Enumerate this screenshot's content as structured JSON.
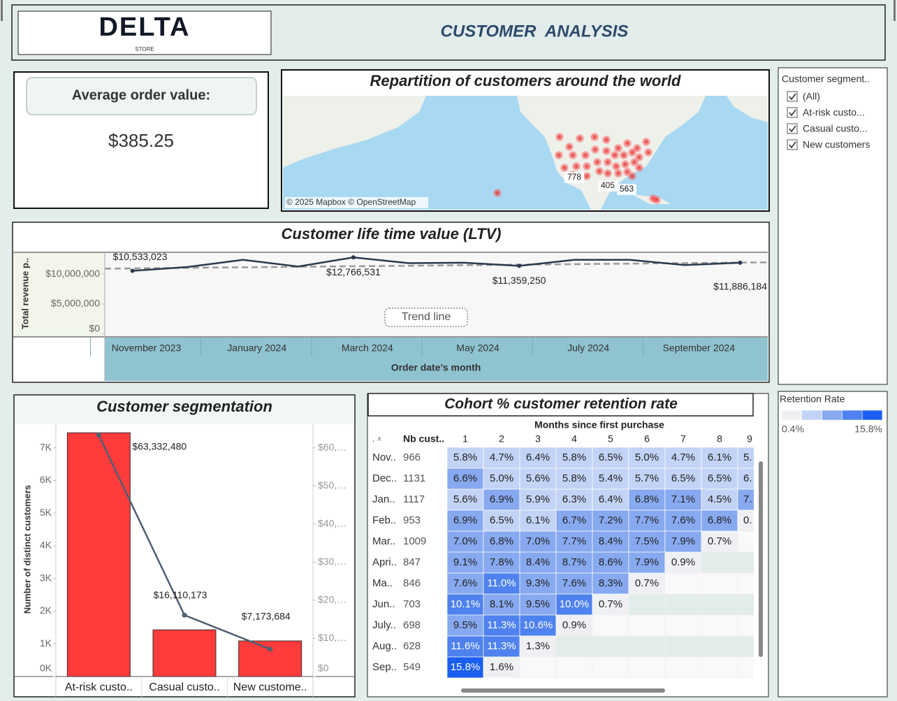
{
  "header": {
    "logo": "DELTA",
    "logo_sub": "STORE",
    "title": "CUSTOMER  ANALYSIS"
  },
  "kpi": {
    "label": "Average order value:",
    "value": "$385.25"
  },
  "map": {
    "title": "Repartition of customers around the world",
    "labels": [
      "778",
      "405",
      "563"
    ],
    "attribution": "© 2025 Mapbox © OpenStreetMap"
  },
  "chart_data": [
    {
      "type": "line",
      "title": "Customer life time value (LTV)",
      "y_label": "Total revenue p..",
      "x_label": "Order date’s month",
      "categories": [
        "November 2023",
        null,
        "January 2024",
        null,
        "March 2024",
        null,
        "May 2024",
        null,
        "July 2024",
        null,
        "September 2024",
        null
      ],
      "values": [
        10533023,
        11170000,
        12370000,
        11250000,
        12766531,
        11810000,
        11890000,
        11359250,
        12370000,
        12370000,
        11490000,
        11886184
      ],
      "value_labels": [
        "$10,533,023",
        null,
        null,
        null,
        "$12,766,531",
        null,
        null,
        "$11,359,250",
        null,
        null,
        null,
        "$11,886,184"
      ],
      "color": "#2b3a4f",
      "ylim": [
        0,
        13500000
      ],
      "yticks": [
        {
          "value": 0,
          "label": "$0"
        },
        {
          "value": 5000000,
          "label": "$5,000,000"
        },
        {
          "value": 10000000,
          "label": "$10,000,000"
        }
      ],
      "trend_line": {
        "label": "Trend line",
        "values": [
          10900000,
          11950000
        ],
        "color": "#9a9a9a"
      }
    },
    {
      "type": "bar_line",
      "title": "Customer segmentation",
      "y_label": "Number of distinct customers",
      "categories": [
        "At-risk custo..",
        "Casual custo..",
        "New custome.."
      ],
      "series": [
        {
          "type": "bar",
          "color": "#ff3b3b",
          "values": [
            7460,
            1430,
            1090
          ]
        },
        {
          "type": "line",
          "axis": "y2",
          "color": "#4f5f73",
          "values": [
            63332480,
            16110173,
            7173684
          ],
          "value_labels": [
            "$63,332,480",
            "$16,110,173",
            "$7,173,684"
          ]
        }
      ],
      "ylim": [
        0,
        7700
      ],
      "yticks": [
        {
          "value": 0,
          "label": "0K"
        },
        {
          "value": 1000,
          "label": "1K"
        },
        {
          "value": 2000,
          "label": "2K"
        },
        {
          "value": 3000,
          "label": "3K"
        },
        {
          "value": 4000,
          "label": "4K"
        },
        {
          "value": 5000,
          "label": "5K"
        },
        {
          "value": 6000,
          "label": "6K"
        },
        {
          "value": 7000,
          "label": "7K"
        }
      ],
      "y2lim": [
        0,
        66000000
      ],
      "y2ticks": [
        {
          "value": 0,
          "label": "$0"
        },
        {
          "value": 10000000,
          "label": "$10,…"
        },
        {
          "value": 20000000,
          "label": "$20,…"
        },
        {
          "value": 30000000,
          "label": "$30,…"
        },
        {
          "value": 40000000,
          "label": "$40,…"
        },
        {
          "value": 50000000,
          "label": "$50,…"
        },
        {
          "value": 60000000,
          "label": "$60,…"
        }
      ]
    }
  ],
  "cohort": {
    "title": "Cohort % customer retention rate",
    "column_header": "Months since first purchase",
    "row_header": "Nb cust..",
    "columns": [
      1,
      2,
      3,
      4,
      5,
      6,
      7,
      8,
      9
    ],
    "rows": [
      {
        "label": "Nov..",
        "count": 966,
        "cells": [
          "5.8%",
          "4.7%",
          "6.4%",
          "5.8%",
          "6.5%",
          "5.0%",
          "4.7%",
          "6.1%",
          "5."
        ]
      },
      {
        "label": "Dec..",
        "count": 1131,
        "cells": [
          "6.6%",
          "5.0%",
          "5.6%",
          "5.8%",
          "5.4%",
          "5.7%",
          "6.5%",
          "6.5%",
          "6."
        ]
      },
      {
        "label": "Jan..",
        "count": 1117,
        "cells": [
          "5.6%",
          "6.9%",
          "5.9%",
          "6.3%",
          "6.4%",
          "6.8%",
          "7.1%",
          "4.5%",
          "7."
        ]
      },
      {
        "label": "Feb..",
        "count": 953,
        "cells": [
          "6.9%",
          "6.5%",
          "6.1%",
          "6.7%",
          "7.2%",
          "7.7%",
          "7.6%",
          "6.8%",
          "0."
        ]
      },
      {
        "label": "Mar..",
        "count": 1009,
        "cells": [
          "7.0%",
          "6.8%",
          "7.0%",
          "7.7%",
          "8.4%",
          "7.5%",
          "7.9%",
          "0.7%"
        ]
      },
      {
        "label": "Apri..",
        "count": 847,
        "cells": [
          "9.1%",
          "7.8%",
          "8.4%",
          "8.7%",
          "8.6%",
          "7.9%",
          "0.9%"
        ]
      },
      {
        "label": "Ma..",
        "count": 846,
        "cells": [
          "7.6%",
          "11.0%",
          "9.3%",
          "7.6%",
          "8.3%",
          "0.7%"
        ]
      },
      {
        "label": "Jun..",
        "count": 703,
        "cells": [
          "10.1%",
          "8.1%",
          "9.5%",
          "10.0%",
          "0.7%"
        ]
      },
      {
        "label": "July..",
        "count": 698,
        "cells": [
          "9.5%",
          "11.3%",
          "10.6%",
          "0.9%"
        ]
      },
      {
        "label": "Aug..",
        "count": 628,
        "cells": [
          "11.6%",
          "11.3%",
          "1.3%"
        ]
      },
      {
        "label": "Sep..",
        "count": 549,
        "cells": [
          "15.8%",
          "1.6%"
        ]
      }
    ]
  },
  "filter": {
    "title": "Customer segment..",
    "options": [
      "(All)",
      "At-risk custo...",
      "Casual custo...",
      "New customers"
    ]
  },
  "legend": {
    "title": "Retention Rate",
    "min": "0.4%",
    "max": "15.8%",
    "colors": [
      "#eef0f3",
      "#c2d3f5",
      "#87a9f0",
      "#4f82ee",
      "#1a5ff0"
    ]
  }
}
